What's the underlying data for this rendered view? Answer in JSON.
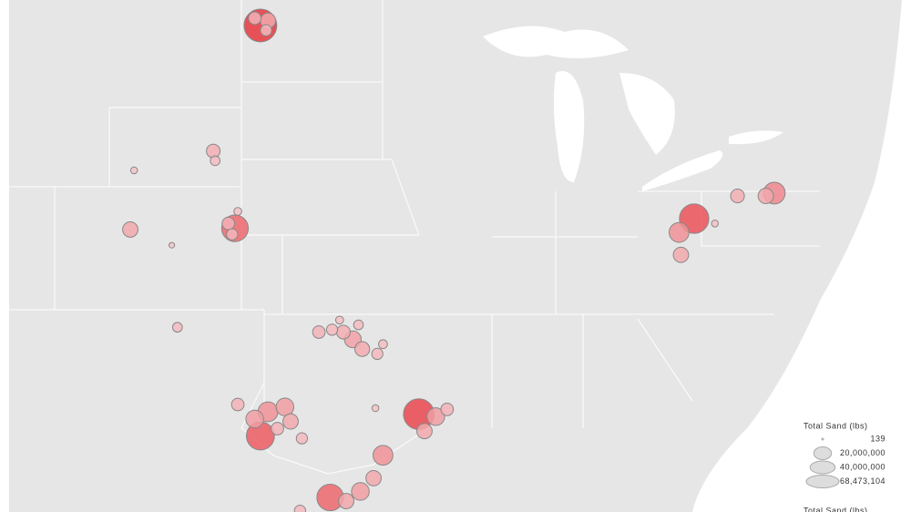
{
  "chart_data": {
    "type": "bubble_map",
    "legend_title": "Total Sand (lbs)",
    "legend_sizes": [
      139,
      {
        "value": 20000000,
        "label": "20,000,000"
      },
      {
        "value": 40000000,
        "label": "40,000,000"
      },
      {
        "value": 68473104,
        "label": "68,473,104"
      }
    ],
    "color_legend_title": "Total Sand (lbs)",
    "wells": [
      {
        "lon": -103.2,
        "lat": 48.0,
        "value": 68000000
      },
      {
        "lon": -102.8,
        "lat": 48.2,
        "value": 15000000
      },
      {
        "lon": -103.5,
        "lat": 48.3,
        "value": 10000000
      },
      {
        "lon": -102.9,
        "lat": 47.8,
        "value": 8000000
      },
      {
        "lon": -105.7,
        "lat": 42.8,
        "value": 12000000
      },
      {
        "lon": -105.6,
        "lat": 42.4,
        "value": 6000000
      },
      {
        "lon": -109.9,
        "lat": 42.0,
        "value": 3000000
      },
      {
        "lon": -104.55,
        "lat": 39.6,
        "value": 45000000
      },
      {
        "lon": -104.9,
        "lat": 39.8,
        "value": 10000000
      },
      {
        "lon": -104.7,
        "lat": 39.35,
        "value": 8000000
      },
      {
        "lon": -104.4,
        "lat": 40.3,
        "value": 4000000
      },
      {
        "lon": -110.1,
        "lat": 39.55,
        "value": 15000000
      },
      {
        "lon": -107.9,
        "lat": 38.9,
        "value": 2000000
      },
      {
        "lon": -107.6,
        "lat": 35.5,
        "value": 6000000
      },
      {
        "lon": -100.1,
        "lat": 35.3,
        "value": 10000000
      },
      {
        "lon": -99.4,
        "lat": 35.4,
        "value": 8000000
      },
      {
        "lon": -98.8,
        "lat": 35.3,
        "value": 12000000
      },
      {
        "lon": -98.3,
        "lat": 35.0,
        "value": 18000000
      },
      {
        "lon": -97.8,
        "lat": 34.6,
        "value": 14000000
      },
      {
        "lon": -97.0,
        "lat": 34.4,
        "value": 8000000
      },
      {
        "lon": -99.0,
        "lat": 35.8,
        "value": 4000000
      },
      {
        "lon": -98.0,
        "lat": 35.6,
        "value": 6000000
      },
      {
        "lon": -96.7,
        "lat": 34.8,
        "value": 5000000
      },
      {
        "lon": -104.4,
        "lat": 32.3,
        "value": 10000000
      },
      {
        "lon": -103.5,
        "lat": 31.7,
        "value": 20000000
      },
      {
        "lon": -102.8,
        "lat": 32.0,
        "value": 25000000
      },
      {
        "lon": -101.9,
        "lat": 32.2,
        "value": 20000000
      },
      {
        "lon": -101.6,
        "lat": 31.6,
        "value": 15000000
      },
      {
        "lon": -103.2,
        "lat": 31.0,
        "value": 50000000
      },
      {
        "lon": -102.3,
        "lat": 31.3,
        "value": 10000000
      },
      {
        "lon": -101.0,
        "lat": 30.9,
        "value": 8000000
      },
      {
        "lon": -94.8,
        "lat": 31.9,
        "value": 60000000
      },
      {
        "lon": -93.9,
        "lat": 31.8,
        "value": 20000000
      },
      {
        "lon": -94.5,
        "lat": 31.2,
        "value": 15000000
      },
      {
        "lon": -93.3,
        "lat": 32.1,
        "value": 10000000
      },
      {
        "lon": -97.1,
        "lat": 32.15,
        "value": 3000000
      },
      {
        "lon": -96.7,
        "lat": 30.2,
        "value": 25000000
      },
      {
        "lon": -97.2,
        "lat": 29.25,
        "value": 15000000
      },
      {
        "lon": -97.9,
        "lat": 28.7,
        "value": 20000000
      },
      {
        "lon": -99.5,
        "lat": 28.45,
        "value": 45000000
      },
      {
        "lon": -98.65,
        "lat": 28.3,
        "value": 15000000
      },
      {
        "lon": -101.1,
        "lat": 27.9,
        "value": 8000000
      },
      {
        "lon": -80.2,
        "lat": 40.0,
        "value": 55000000
      },
      {
        "lon": -81.0,
        "lat": 39.43,
        "value": 25000000
      },
      {
        "lon": -80.9,
        "lat": 38.5,
        "value": 15000000
      },
      {
        "lon": -79.1,
        "lat": 39.8,
        "value": 3000000
      },
      {
        "lon": -77.9,
        "lat": 40.94,
        "value": 12000000
      },
      {
        "lon": -75.95,
        "lat": 41.06,
        "value": 30000000
      },
      {
        "lon": -76.4,
        "lat": 40.94,
        "value": 15000000
      }
    ]
  }
}
